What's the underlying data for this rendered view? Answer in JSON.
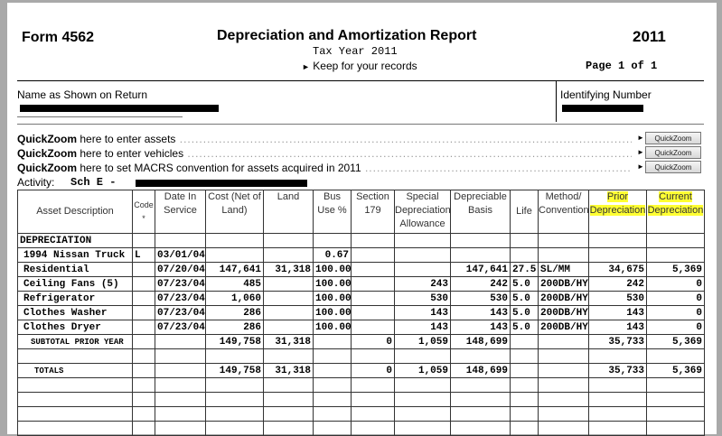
{
  "header": {
    "form": "Form 4562",
    "title": "Depreciation and Amortization Report",
    "tax_year": "Tax Year 2011",
    "keep": "Keep for your records",
    "keep_icon": "triangle-right-icon",
    "year": "2011",
    "page": "Page 1  of 1"
  },
  "name_label": "Name as Shown on Return",
  "id_label": "Identifying Number",
  "quickzoom": [
    {
      "bold": "QuickZoom",
      "text": " here to enter assets",
      "button": "QuickZoom"
    },
    {
      "bold": "QuickZoom",
      "text": " here to enter vehicles",
      "button": "QuickZoom"
    },
    {
      "bold": "QuickZoom",
      "text": " here to set MACRS convention for assets acquired in 2011",
      "button": "QuickZoom"
    }
  ],
  "activity": {
    "label": "Activity:",
    "value": "Sch E  -"
  },
  "columns": [
    "Asset Description",
    "Code *",
    "Date In Service",
    "Cost (Net of Land)",
    "Land",
    "Bus Use %",
    "Section 179",
    "Special Depreciation Allowance",
    "Depreciable Basis",
    "Life",
    "Method/ Convention",
    "Prior Depreciation",
    "Current Depreciation"
  ],
  "highlight_color": "#ffff33",
  "section": "DEPRECIATION",
  "rows": [
    [
      "1994 Nissan Truck",
      "L",
      "03/01/04",
      "",
      "",
      "0.67",
      "",
      "",
      "",
      "",
      "",
      "",
      ""
    ],
    [
      "Residential",
      "",
      "07/20/04",
      "147,641",
      "31,318",
      "100.00",
      "",
      "",
      "147,641",
      "27.5",
      "SL/MM",
      "34,675",
      "5,369"
    ],
    [
      "Ceiling Fans (5)",
      "",
      "07/23/04",
      "485",
      "",
      "100.00",
      "",
      "243",
      "242",
      "5.0",
      "200DB/HY",
      "242",
      "0"
    ],
    [
      "Refrigerator",
      "",
      "07/23/04",
      "1,060",
      "",
      "100.00",
      "",
      "530",
      "530",
      "5.0",
      "200DB/HY",
      "530",
      "0"
    ],
    [
      "Clothes Washer",
      "",
      "07/23/04",
      "286",
      "",
      "100.00",
      "",
      "143",
      "143",
      "5.0",
      "200DB/HY",
      "143",
      "0"
    ],
    [
      "Clothes Dryer",
      "",
      "07/23/04",
      "286",
      "",
      "100.00",
      "",
      "143",
      "143",
      "5.0",
      "200DB/HY",
      "143",
      "0"
    ]
  ],
  "subtotal": [
    "SUBTOTAL PRIOR YEAR",
    "",
    "",
    "149,758",
    "31,318",
    "",
    "0",
    "1,059",
    "148,699",
    "",
    "",
    "35,733",
    "5,369"
  ],
  "totals": [
    "TOTALS",
    "",
    "",
    "149,758",
    "31,318",
    "",
    "0",
    "1,059",
    "148,699",
    "",
    "",
    "35,733",
    "5,369"
  ]
}
